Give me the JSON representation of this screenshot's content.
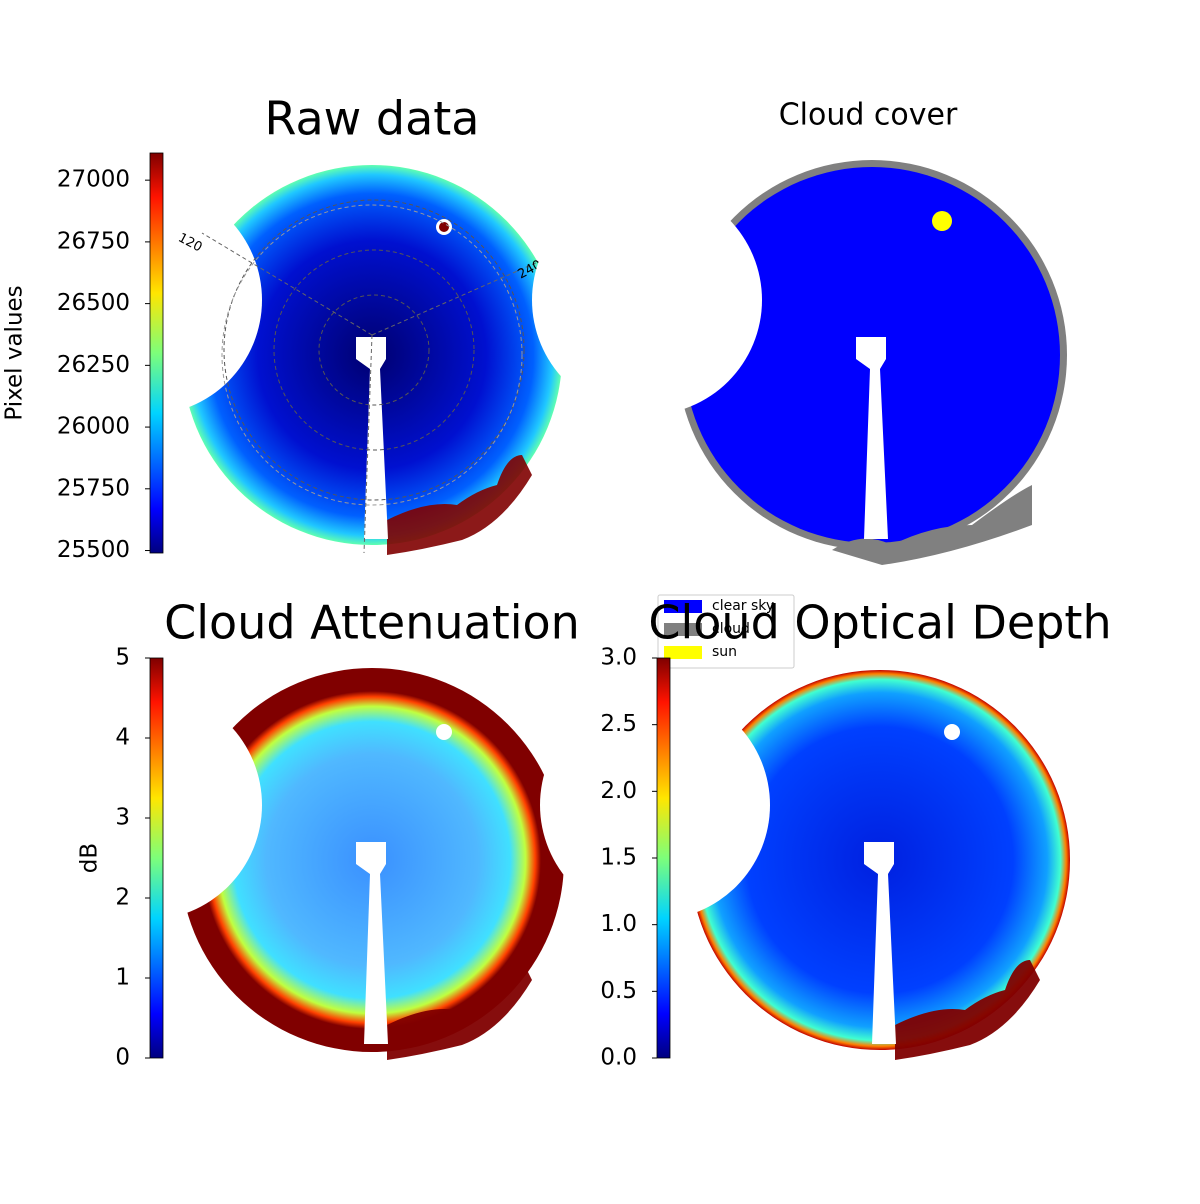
{
  "chart_data": [
    {
      "type": "image",
      "title": "Raw data",
      "colormap": "jet",
      "colorbar_label": "Pixel values",
      "clim": [
        25490,
        27110
      ],
      "cticks": [
        25500,
        25750,
        26000,
        26250,
        26500,
        26750,
        27000
      ],
      "annotations": [
        "120",
        "240"
      ]
    },
    {
      "type": "image",
      "title": "Cloud cover",
      "legend": [
        {
          "name": "clear sky",
          "color": "#0000ff"
        },
        {
          "name": "cloud",
          "color": "#808080"
        },
        {
          "name": "sun",
          "color": "#ffff00"
        }
      ]
    },
    {
      "type": "image",
      "title": "Cloud Attenuation",
      "colormap": "jet",
      "colorbar_label": "dB",
      "clim": [
        0,
        5
      ],
      "cticks": [
        0,
        1,
        2,
        3,
        4,
        5
      ]
    },
    {
      "type": "image",
      "title": "Cloud Optical Depth",
      "colormap": "jet",
      "clim": [
        0,
        3
      ],
      "cticks": [
        {
          "value": 0,
          "label": "0.0"
        },
        0.5,
        {
          "value": 1,
          "label": "1.0"
        },
        1.5,
        {
          "value": 2,
          "label": "2.0"
        },
        2.5,
        {
          "value": 3,
          "label": "3.0"
        }
      ]
    }
  ]
}
